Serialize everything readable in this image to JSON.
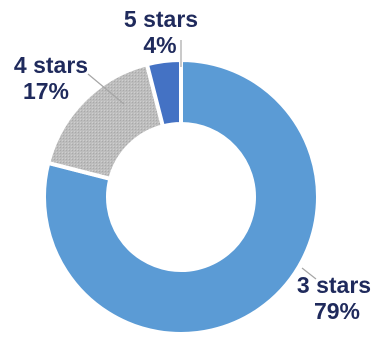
{
  "chart_data": {
    "type": "pie",
    "variant": "donut",
    "legend": "none",
    "slices": [
      {
        "label": "3 stars",
        "value": 79,
        "percent_label": "79%",
        "color": "#5b9bd5"
      },
      {
        "label": "4 stars",
        "value": 17,
        "percent_label": "17%",
        "color": "#bfbfbf"
      },
      {
        "label": "5 stars",
        "value": 4,
        "percent_label": "4%",
        "color": "#4472c4"
      }
    ],
    "label_color": "#1f2a5c"
  }
}
